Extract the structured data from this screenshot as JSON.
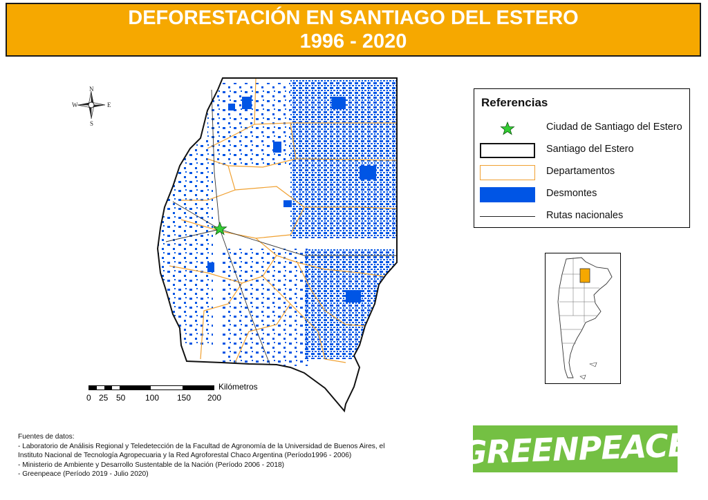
{
  "title": {
    "line1": "DEFORESTACIÓN EN SANTIAGO DEL ESTERO",
    "line2": "1996 - 2020"
  },
  "compass": {
    "n": "N",
    "s": "S",
    "e": "E",
    "w": "W"
  },
  "scale": {
    "unit": "Kilómetros",
    "ticks": [
      "0",
      "25",
      "50",
      "100",
      "150",
      "200"
    ]
  },
  "legend": {
    "title": "Referencias",
    "items": [
      {
        "label": "Ciudad de Santiago del Estero",
        "symbol": "star-icon"
      },
      {
        "label": "Santiago del Estero",
        "symbol": "province-outline"
      },
      {
        "label": "Departamentos",
        "symbol": "department-outline"
      },
      {
        "label": "Desmontes",
        "symbol": "deforestation-fill"
      },
      {
        "label": "Rutas nacionales",
        "symbol": "route-line"
      }
    ]
  },
  "sources": {
    "heading": "Fuentes de datos:",
    "lines": [
      "- Laboratorio de Análisis Regional y Teledetección de la Facultad de Agronomía de la Universidad de Buenos Aires, el",
      "Instituto Nacional de Tecnología Agropecuaria y la Red Agroforestal Chaco Argentina (Período1996 - 2006)",
      "- Ministerio de Ambiente y Desarrollo Sustentable de la Nación (Período 2006 - 2018)",
      "- Greenpeace (Período 2019 - Julio 2020)"
    ]
  },
  "logo": {
    "text": "GREENPEACE"
  },
  "colors": {
    "banner": "#f6a800",
    "deforestation": "#0055e5",
    "departments": "#f0a030",
    "city_star": "#33cc33",
    "logo_bg": "#74c043"
  }
}
